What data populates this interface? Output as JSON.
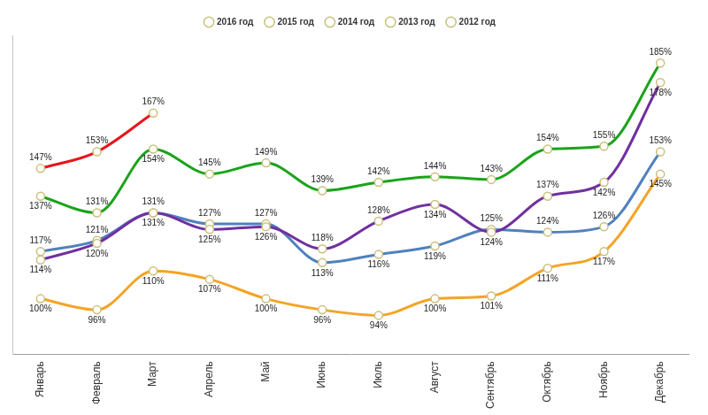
{
  "chart_data": {
    "type": "line",
    "categories": [
      "Январь",
      "Февраль",
      "Март",
      "Апрель",
      "Май",
      "Июнь",
      "Июль",
      "Август",
      "Сентябрь",
      "Октябрь",
      "Ноябрь",
      "Декабрь"
    ],
    "series": [
      {
        "name": "2012 год",
        "color": "#f4a425",
        "values": [
          100,
          96,
          110,
          107,
          100,
          96,
          94,
          100,
          101,
          111,
          117,
          145
        ],
        "value_labels": [
          "100%",
          "96%",
          "110%",
          "107%",
          "100%",
          "96%",
          "94%",
          "100%",
          "101%",
          "111%",
          "117%",
          "145%"
        ]
      },
      {
        "name": "2013 год",
        "color": "#4f81bd",
        "values": [
          117,
          121,
          131,
          127,
          127,
          113,
          116,
          119,
          125,
          124,
          126,
          153
        ],
        "value_labels": [
          "117%",
          "121%",
          "131%",
          "127%",
          "127%",
          "113%",
          "116%",
          "119%",
          "125%",
          "124%",
          "126%",
          "153%"
        ]
      },
      {
        "name": "2014 год",
        "color": "#7030a0",
        "values": [
          114,
          120,
          131,
          125,
          126,
          118,
          128,
          134,
          124,
          137,
          142,
          178
        ],
        "value_labels": [
          "114%",
          "120%",
          "131%",
          "125%",
          "126%",
          "118%",
          "128%",
          "134%",
          "124%",
          "137%",
          "142%",
          "178%"
        ]
      },
      {
        "name": "2015 год",
        "color": "#1aa31a",
        "values": [
          137,
          131,
          154,
          145,
          149,
          139,
          142,
          144,
          143,
          154,
          155,
          185
        ],
        "value_labels": [
          "137%",
          "131%",
          "154%",
          "145%",
          "149%",
          "139%",
          "142%",
          "144%",
          "143%",
          "154%",
          "155%",
          "185%"
        ]
      },
      {
        "name": "2016 год",
        "color": "#e8141b",
        "values": [
          147,
          153,
          167,
          null,
          null,
          null,
          null,
          null,
          null,
          null,
          null,
          null
        ],
        "value_labels": [
          "147%",
          "153%",
          "167%",
          null,
          null,
          null,
          null,
          null,
          null,
          null,
          null,
          null
        ]
      }
    ],
    "ylim": [
      80,
      195
    ],
    "data_labels": true,
    "tick_labels": "x",
    "grid": false,
    "legend": "top",
    "marker": "circle"
  }
}
